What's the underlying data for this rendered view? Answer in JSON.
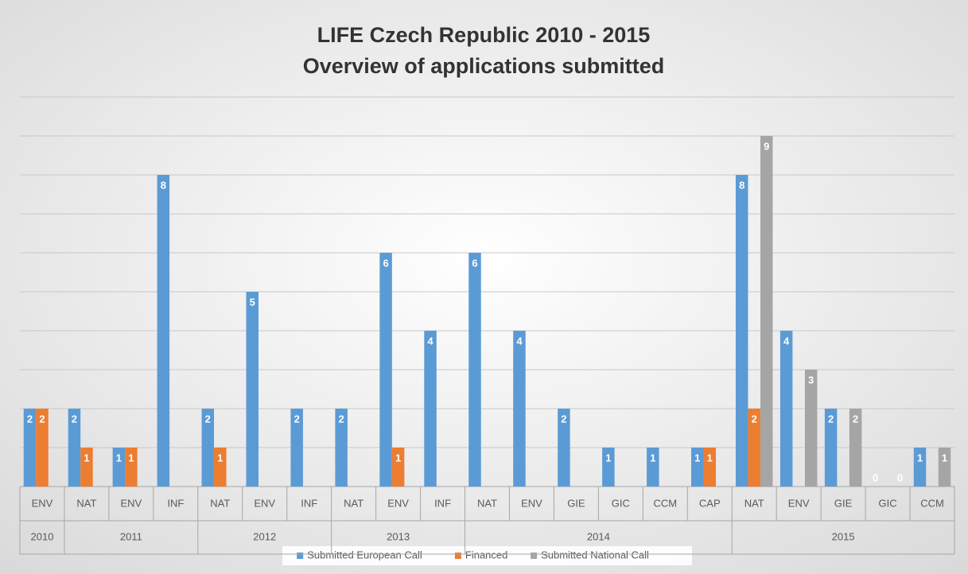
{
  "chart_data": {
    "type": "bar",
    "title": "LIFE  Czech Republic  2010 - 2015",
    "subtitle": "Overview of applications submitted",
    "groups": [
      {
        "label": "2010",
        "categories": [
          "ENV"
        ]
      },
      {
        "label": "2011",
        "categories": [
          "NAT",
          "ENV",
          "INF"
        ]
      },
      {
        "label": "2012",
        "categories": [
          "NAT",
          "ENV",
          "INF"
        ]
      },
      {
        "label": "2013",
        "categories": [
          "NAT",
          "ENV",
          "INF"
        ]
      },
      {
        "label": "2014",
        "categories": [
          "NAT",
          "ENV",
          "GIE",
          "GIC",
          "CCM",
          "CAP"
        ]
      },
      {
        "label": "2015",
        "categories": [
          "NAT",
          "ENV",
          "GIE",
          "GIC",
          "CCM"
        ]
      }
    ],
    "series": [
      {
        "name": "Submitted European Call",
        "color": "#5b9bd5",
        "values": [
          2,
          2,
          1,
          8,
          2,
          5,
          2,
          2,
          6,
          4,
          6,
          4,
          2,
          1,
          1,
          1,
          8,
          4,
          2,
          0,
          1
        ]
      },
      {
        "name": "Financed",
        "color": "#ed7d31",
        "values": [
          2,
          1,
          1,
          null,
          1,
          null,
          null,
          null,
          1,
          null,
          null,
          null,
          null,
          null,
          null,
          1,
          2,
          null,
          null,
          null,
          null
        ]
      },
      {
        "name": "Submitted National Call",
        "color": "#a5a5a5",
        "values": [
          null,
          null,
          null,
          null,
          null,
          null,
          null,
          null,
          null,
          null,
          null,
          null,
          null,
          null,
          null,
          null,
          9,
          3,
          2,
          0,
          1
        ]
      }
    ],
    "ylim": [
      0,
      10
    ],
    "yticks": [
      0,
      1,
      2,
      3,
      4,
      5,
      6,
      7,
      8,
      9,
      10
    ],
    "grid": true,
    "legend": "bottom"
  }
}
